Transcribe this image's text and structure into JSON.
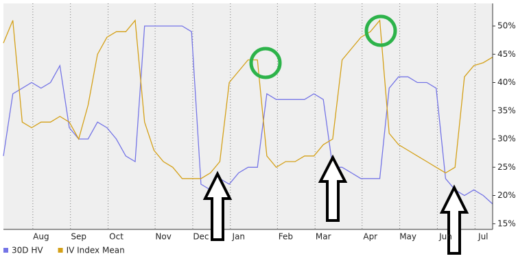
{
  "chart_data": {
    "type": "line",
    "categories": [
      null,
      null,
      null,
      null,
      "Aug",
      null,
      null,
      null,
      "Sep",
      null,
      null,
      null,
      "Oct",
      null,
      null,
      null,
      null,
      "Nov",
      null,
      null,
      null,
      "Dec",
      null,
      null,
      null,
      "Jan",
      null,
      null,
      null,
      null,
      "Feb",
      null,
      null,
      null,
      "Mar",
      null,
      null,
      null,
      null,
      "Apr",
      null,
      null,
      null,
      "May",
      null,
      null,
      null,
      "Jun",
      null,
      null,
      null,
      "Jul",
      null
    ],
    "series": [
      {
        "name": "30D HV",
        "color": "#7474e6",
        "values": [
          27,
          38,
          39,
          40,
          39,
          40,
          43,
          32,
          30,
          30,
          33,
          32,
          30,
          27,
          26,
          50,
          50,
          50,
          50,
          50,
          49,
          22,
          21,
          23,
          22,
          24,
          25,
          25,
          38,
          37,
          37,
          37,
          37,
          38,
          37,
          25,
          25,
          24,
          23,
          23,
          23,
          39,
          41,
          41,
          40,
          40,
          39,
          23,
          21,
          20,
          21,
          20,
          18.5
        ]
      },
      {
        "name": "IV Index Mean",
        "color": "#d4a017",
        "values": [
          47,
          51,
          33,
          32,
          33,
          33,
          34,
          33,
          30,
          36,
          45,
          48,
          49,
          49,
          51,
          33,
          28,
          26,
          25,
          23,
          23,
          23,
          24,
          26,
          40,
          42,
          44,
          44,
          27,
          25,
          26,
          26,
          27,
          27,
          29,
          30,
          44,
          46,
          48,
          49,
          51,
          31,
          29,
          28,
          27,
          26,
          25,
          24,
          25,
          41,
          43,
          43.5,
          44.5
        ]
      }
    ],
    "ylim": [
      14,
      54
    ],
    "yticks": [
      {
        "value": 15,
        "label": "15%"
      },
      {
        "value": 20,
        "label": "20%"
      },
      {
        "value": 25,
        "label": "25%"
      },
      {
        "value": 30,
        "label": "30%"
      },
      {
        "value": 35,
        "label": "35%"
      },
      {
        "value": 40,
        "label": "40%"
      },
      {
        "value": 45,
        "label": "45%"
      },
      {
        "value": 50,
        "label": "50%"
      }
    ],
    "grid": true,
    "legend": "bottom-left"
  }
}
